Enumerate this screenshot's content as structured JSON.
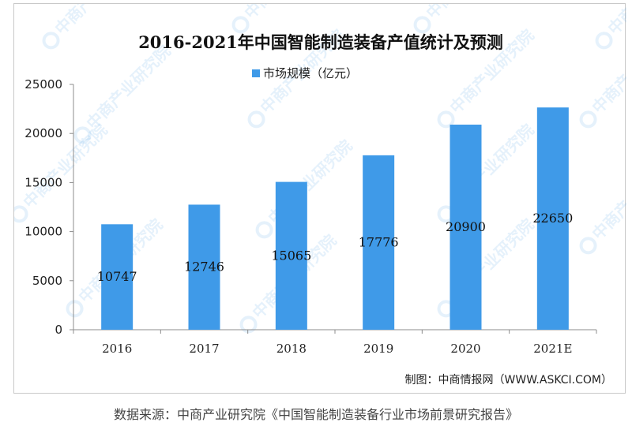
{
  "chart_data": {
    "type": "bar",
    "title": "2016-2021年中国智能制造装备产值统计及预测",
    "xlabel": "",
    "ylabel": "",
    "categories": [
      "2016",
      "2017",
      "2018",
      "2019",
      "2020",
      "2021E"
    ],
    "series": [
      {
        "name": "市场规模（亿元）",
        "values": [
          10747,
          12746,
          15065,
          17776,
          20900,
          22650
        ]
      }
    ],
    "data_labels": [
      "10747",
      "12746",
      "15065",
      "17776",
      "20900",
      "22650"
    ],
    "ylim": [
      0,
      25000
    ],
    "y_ticks": [
      0,
      5000,
      10000,
      15000,
      20000,
      25000
    ],
    "y_tick_labels": [
      "0",
      "5000",
      "10000",
      "15000",
      "20000",
      "25000"
    ],
    "grid": false,
    "legend_position": "top-center",
    "bar_color": "#3f9ae8"
  },
  "credit": "制图：中商情报网（WWW.ASKCI.COM）",
  "source": "数据来源：中商产业研究院《中国智能制造装备行业市场前景研究报告》",
  "watermark": "中商产业研究院"
}
